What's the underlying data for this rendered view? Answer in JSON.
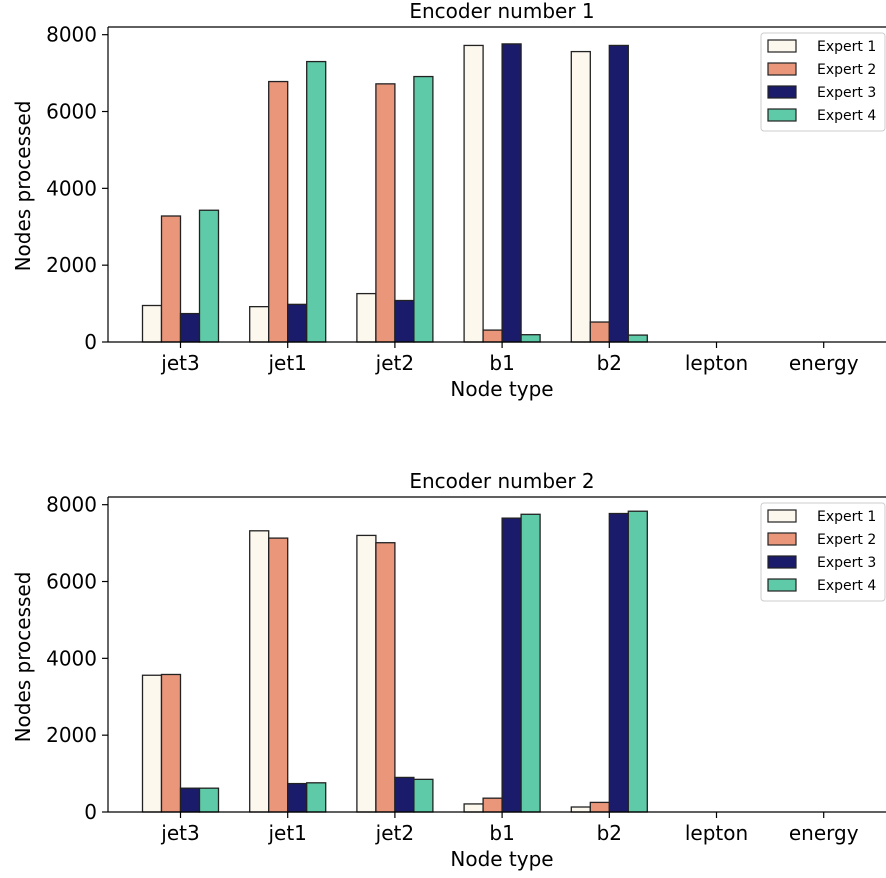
{
  "chart_data": [
    {
      "type": "bar",
      "title": "Encoder number 1",
      "xlabel": "Node type",
      "ylabel": "Nodes processed",
      "ylim": [
        0,
        8200
      ],
      "yticks": [
        0,
        2000,
        4000,
        6000,
        8000
      ],
      "categories": [
        "jet3",
        "jet1",
        "jet2",
        "b1",
        "b2",
        "lepton",
        "energy"
      ],
      "legend_position": "top-right",
      "series": [
        {
          "name": "Expert 1",
          "color": "#fdf8ee",
          "values": [
            950,
            920,
            1260,
            7720,
            7560,
            0,
            0
          ]
        },
        {
          "name": "Expert 2",
          "color": "#e9967b",
          "values": [
            3280,
            6780,
            6720,
            310,
            520,
            0,
            0
          ]
        },
        {
          "name": "Expert 3",
          "color": "#1b1b6b",
          "values": [
            740,
            980,
            1080,
            7760,
            7720,
            0,
            0
          ]
        },
        {
          "name": "Expert 4",
          "color": "#5fcaa7",
          "values": [
            3430,
            7300,
            6910,
            190,
            180,
            0,
            0
          ]
        }
      ]
    },
    {
      "type": "bar",
      "title": "Encoder number 2",
      "xlabel": "Node type",
      "ylabel": "Nodes processed",
      "ylim": [
        0,
        8200
      ],
      "yticks": [
        0,
        2000,
        4000,
        6000,
        8000
      ],
      "categories": [
        "jet3",
        "jet1",
        "jet2",
        "b1",
        "b2",
        "lepton",
        "energy"
      ],
      "legend_position": "top-right",
      "series": [
        {
          "name": "Expert 1",
          "color": "#fdf8ee",
          "values": [
            3560,
            7320,
            7200,
            210,
            130,
            0,
            0
          ]
        },
        {
          "name": "Expert 2",
          "color": "#e9967b",
          "values": [
            3580,
            7130,
            7010,
            360,
            250,
            0,
            0
          ]
        },
        {
          "name": "Expert 3",
          "color": "#1b1b6b",
          "values": [
            620,
            740,
            900,
            7650,
            7770,
            0,
            0
          ]
        },
        {
          "name": "Expert 4",
          "color": "#5fcaa7",
          "values": [
            620,
            760,
            850,
            7750,
            7830,
            0,
            0
          ]
        }
      ]
    }
  ]
}
